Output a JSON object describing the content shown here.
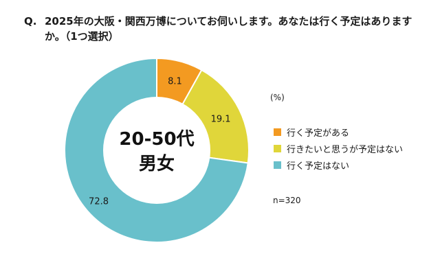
{
  "question": {
    "prefix": "Q.",
    "text": "2025年の大阪・関西万博についてお伺いします。あなたは行く予定はありますか。（1つ選択）"
  },
  "center_label": {
    "line1": "20-50代",
    "line2": "男女"
  },
  "unit_label": "(%)",
  "sample_size": "n=320",
  "chart_data": {
    "type": "pie",
    "style": "donut",
    "start_angle": "top (12 o'clock), clockwise",
    "labels": [
      "行く予定がある",
      "行きたいと思うが予定はない",
      "行く予定はない"
    ],
    "values": [
      8.1,
      19.1,
      72.8
    ],
    "colors": [
      "#F39A21",
      "#E0D63A",
      "#69C0CB"
    ],
    "legend_position": "right",
    "unit": "%",
    "n": 320
  }
}
